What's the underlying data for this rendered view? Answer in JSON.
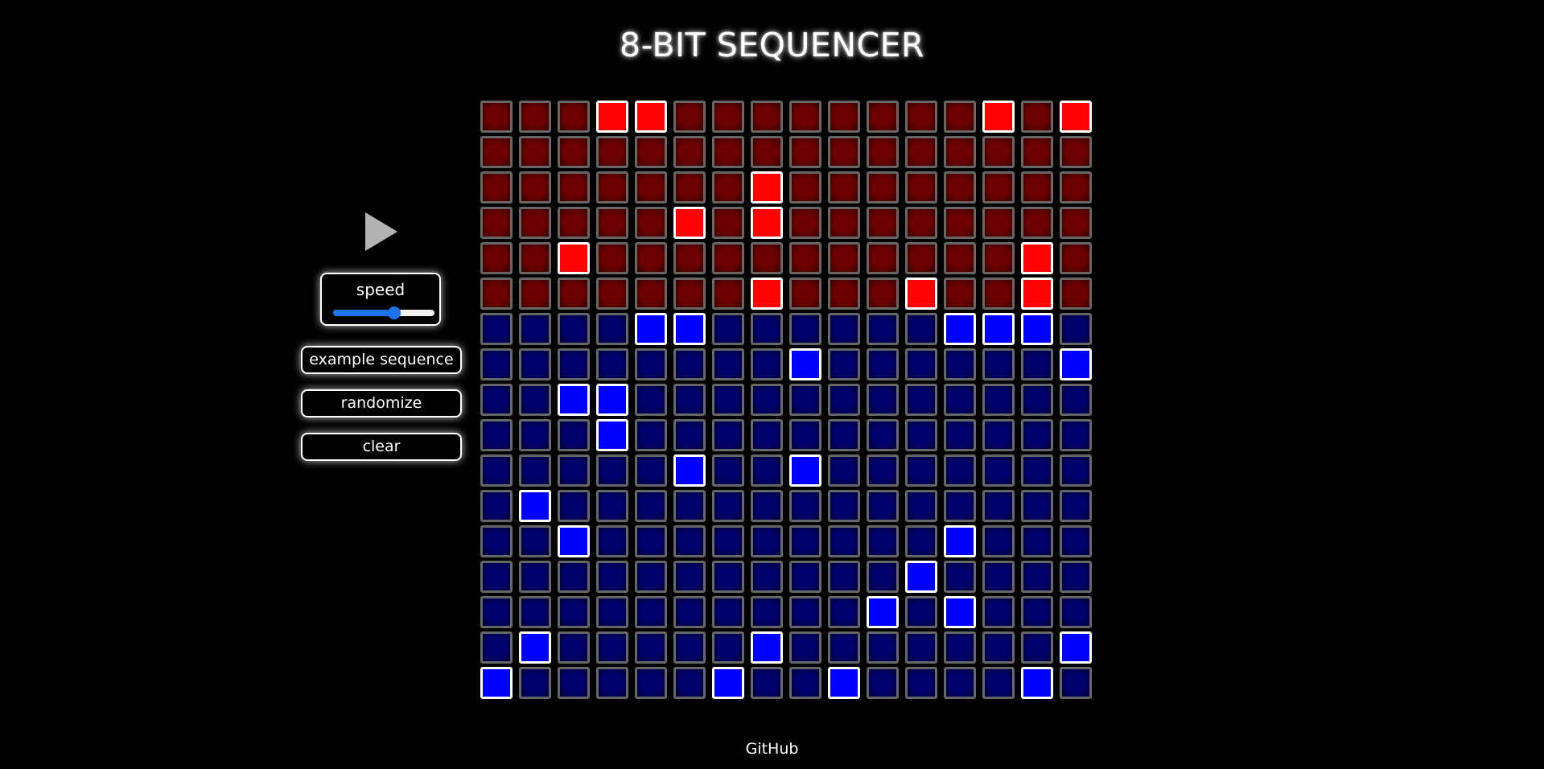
{
  "header": {
    "title": "8-BIT SEQUENCER"
  },
  "controls": {
    "play_icon": "play-triangle",
    "play_color": "#b3b3b3",
    "speed_label": "speed",
    "speed_value": 0.6,
    "buttons": {
      "example": "example sequence",
      "randomize": "randomize",
      "clear": "clear"
    }
  },
  "colors": {
    "background": "#000000",
    "red_on": "#ff0000",
    "blue_on": "#0000ff",
    "slider_accent": "#1a73e8"
  },
  "grid": {
    "columns": 16,
    "red_rows": 6,
    "blue_rows": 11,
    "rows": [
      "0001100000000101",
      "0000000000000000",
      "0000000100000000",
      "0000010100000000",
      "0010000000000010",
      "0000000100010010",
      "0000110000001110",
      "0000000010000001",
      "0011000000000000",
      "0001000000000000",
      "0000010010000000",
      "0100000000000000",
      "0010000000001000",
      "0000000000010000",
      "0000000000101000",
      "0100000100000001",
      "1000001001000010"
    ]
  },
  "footer": {
    "link": "GitHub"
  }
}
